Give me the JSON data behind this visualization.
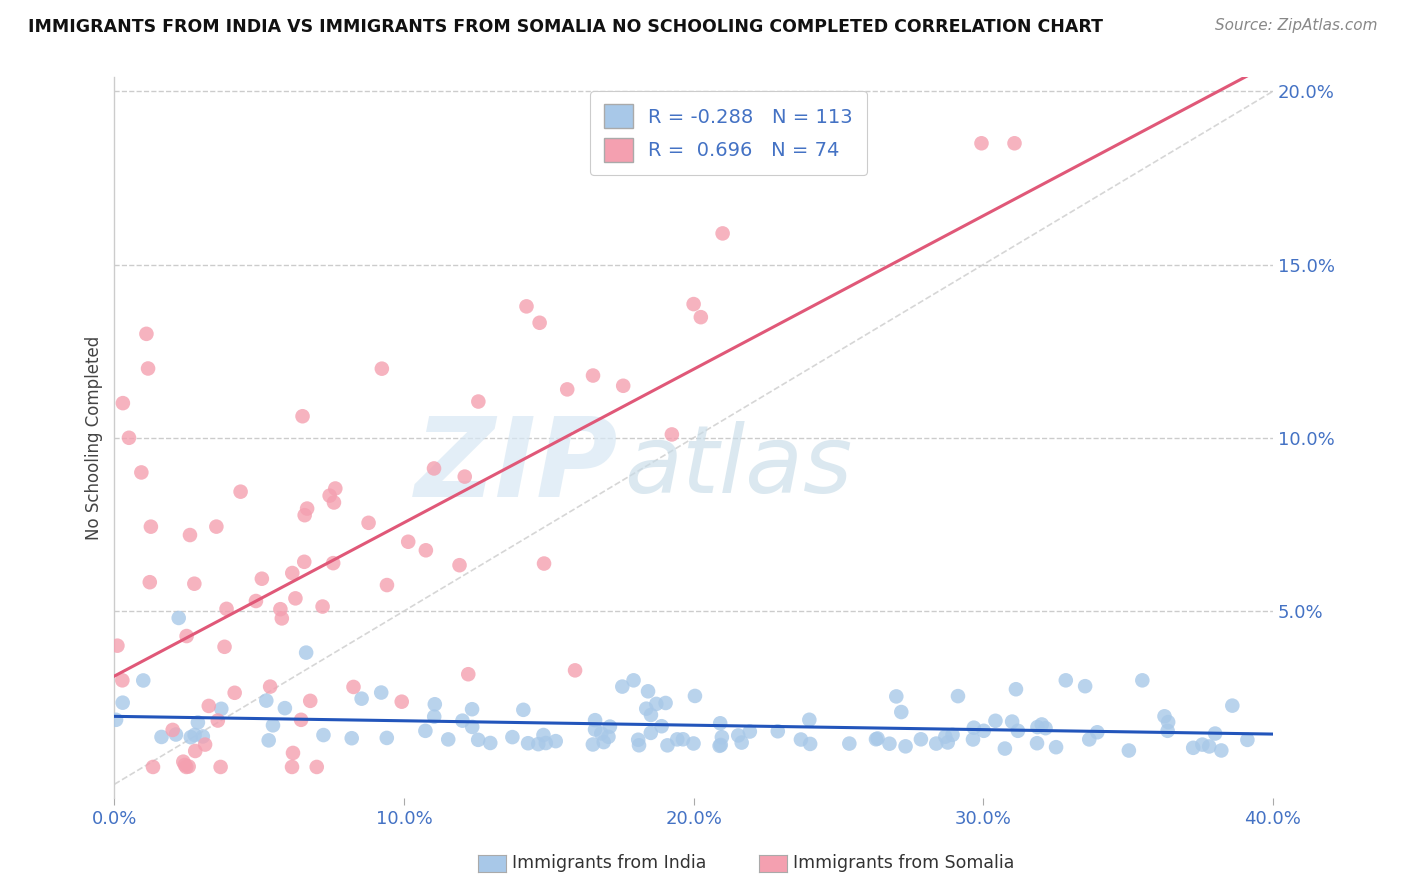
{
  "title": "IMMIGRANTS FROM INDIA VS IMMIGRANTS FROM SOMALIA NO SCHOOLING COMPLETED CORRELATION CHART",
  "source": "Source: ZipAtlas.com",
  "ylabel": "No Schooling Completed",
  "xlim": [
    0.0,
    0.4
  ],
  "ylim": [
    -0.004,
    0.204
  ],
  "xticks": [
    0.0,
    0.1,
    0.2,
    0.3,
    0.4
  ],
  "yticks": [
    0.05,
    0.1,
    0.15,
    0.2
  ],
  "ytick_labels": [
    "5.0%",
    "10.0%",
    "15.0%",
    "20.0%"
  ],
  "xtick_labels": [
    "0.0%",
    "10.0%",
    "20.0%",
    "30.0%",
    "40.0%"
  ],
  "legend_india_label": "Immigrants from India",
  "legend_somalia_label": "Immigrants from Somalia",
  "india_R": -0.288,
  "india_N": 113,
  "somalia_R": 0.696,
  "somalia_N": 74,
  "india_color": "#a8c8e8",
  "somalia_color": "#f4a0b0",
  "india_line_color": "#2255bb",
  "somalia_line_color": "#e05878",
  "watermark_zip": "ZIP",
  "watermark_atlas": "atlas",
  "background_color": "#ffffff",
  "grid_color": "#cccccc"
}
